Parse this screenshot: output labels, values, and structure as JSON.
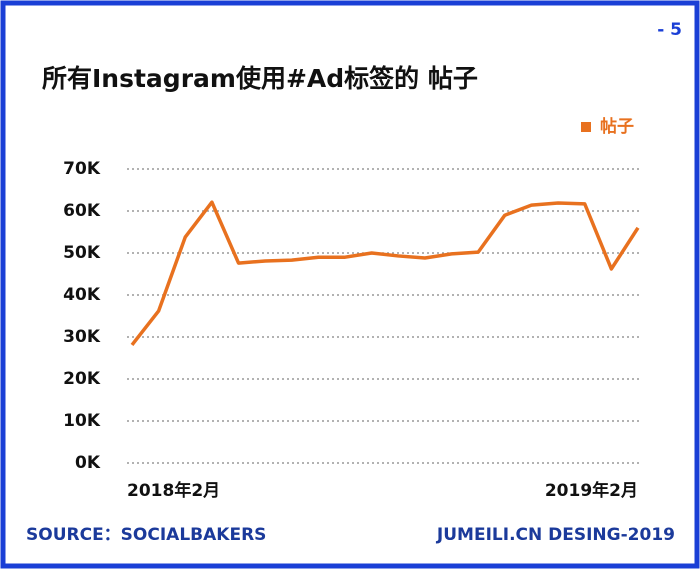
{
  "page_number": "- 5",
  "footer": {
    "source": "SOURCE：SOCIALBAKERS",
    "credit": "JUMEILI.CN DESING-2019"
  },
  "chart_data": {
    "type": "line",
    "title": "所有Instagram使用#Ad标签的 帖子",
    "categories": [
      "2018年2月",
      null,
      null,
      null,
      null,
      null,
      null,
      null,
      null,
      null,
      null,
      null,
      null,
      null,
      null,
      null,
      null,
      null,
      null,
      "2019年2月"
    ],
    "series": [
      {
        "name": "帖子",
        "color": "#e8711f",
        "values": [
          28100,
          36200,
          53800,
          62100,
          47600,
          48100,
          48300,
          49000,
          49000,
          50000,
          49300,
          48800,
          49800,
          50200,
          59000,
          61400,
          61900,
          61700,
          46200,
          56000
        ]
      }
    ],
    "ylim": [
      0,
      70000
    ],
    "yticks": [
      {
        "value": 0,
        "label": "0K"
      },
      {
        "value": 10000,
        "label": "10K"
      },
      {
        "value": 20000,
        "label": "20K"
      },
      {
        "value": 30000,
        "label": "30K"
      },
      {
        "value": 40000,
        "label": "40K"
      },
      {
        "value": 50000,
        "label": "50K"
      },
      {
        "value": 60000,
        "label": "60K"
      },
      {
        "value": 70000,
        "label": "70K"
      }
    ],
    "grid": true,
    "legend": "top-right"
  }
}
